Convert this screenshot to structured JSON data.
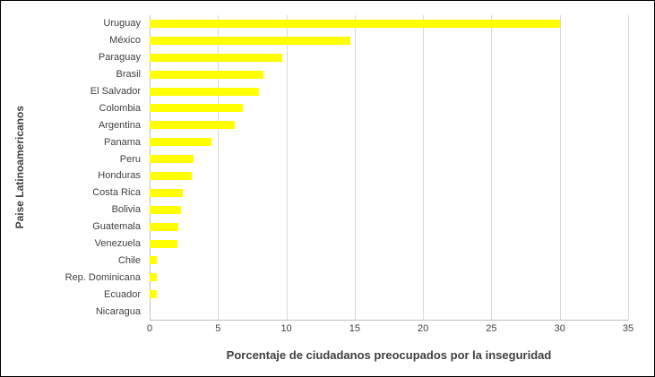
{
  "chart_data": {
    "type": "bar",
    "orientation": "horizontal",
    "title": "",
    "xlabel": "Porcentaje de ciudadanos preocupados por la inseguridad",
    "ylabel": "Paise Latinoamericanos",
    "categories": [
      "Uruguay",
      "México",
      "Paraguay",
      "Brasil",
      "El Salvador",
      "Colombia",
      "Argentina",
      "Panama",
      "Peru",
      "Honduras",
      "Costa Rica",
      "Bolivia",
      "Guatemala",
      "Venezuela",
      "Chile",
      "Rep. Dominicana",
      "Ecuador",
      "Nicaragua"
    ],
    "values": [
      30,
      14.7,
      9.7,
      8.3,
      8.0,
      6.8,
      6.2,
      4.5,
      3.2,
      3.1,
      2.4,
      2.3,
      2.1,
      2.0,
      0.5,
      0.5,
      0.5,
      0
    ],
    "xlim": [
      0,
      35
    ],
    "xticks": [
      0,
      5,
      10,
      15,
      20,
      25,
      30,
      35
    ],
    "bar_color": "#ffff00",
    "grid": true,
    "legend": "none"
  }
}
